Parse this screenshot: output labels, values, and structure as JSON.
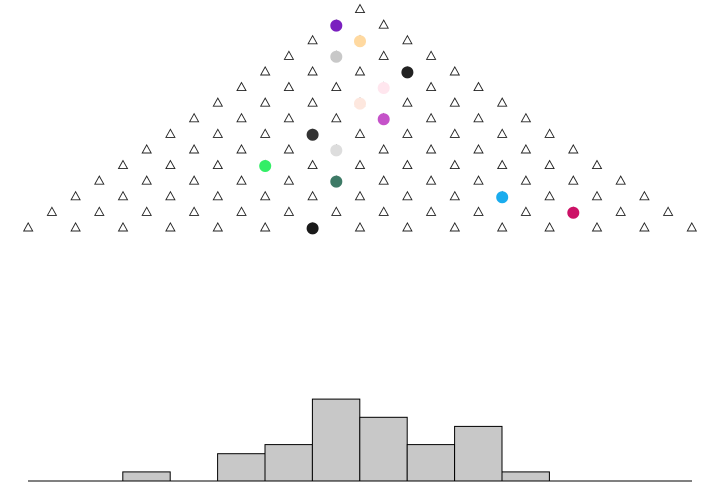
{
  "galton_board": {
    "rows": 15,
    "peg_color": "#222222",
    "balls": [
      {
        "row": 1,
        "pos": 0,
        "color": "#7a1fbf"
      },
      {
        "row": 2,
        "pos": 1,
        "color": "#ffd9a0"
      },
      {
        "row": 3,
        "pos": 1,
        "color": "#c8c8c8"
      },
      {
        "row": 4,
        "pos": 3,
        "color": "#222222"
      },
      {
        "row": 5,
        "pos": 3,
        "color": "#ffe6ee"
      },
      {
        "row": 6,
        "pos": 3,
        "color": "#fde7de"
      },
      {
        "row": 7,
        "pos": 4,
        "color": "#c552c9"
      },
      {
        "row": 8,
        "pos": 3,
        "color": "#333333"
      },
      {
        "row": 9,
        "pos": 4,
        "color": "#dddddd"
      },
      {
        "row": 10,
        "pos": 3,
        "color": "#33ee66"
      },
      {
        "row": 11,
        "pos": 5,
        "color": "#3d7a66"
      },
      {
        "row": 12,
        "pos": 9,
        "color": "#1aacee"
      },
      {
        "row": 13,
        "pos": 11,
        "color": "#cc1166"
      },
      {
        "row": 14,
        "pos": 6,
        "color": "#1a1a1a"
      }
    ]
  },
  "histogram": {
    "bin_counts": [
      0,
      0,
      1,
      0,
      3,
      4,
      9,
      7,
      4,
      6,
      1,
      0,
      0,
      0
    ],
    "bar_color": "#c8c8c8",
    "outline_color": "#000000"
  }
}
